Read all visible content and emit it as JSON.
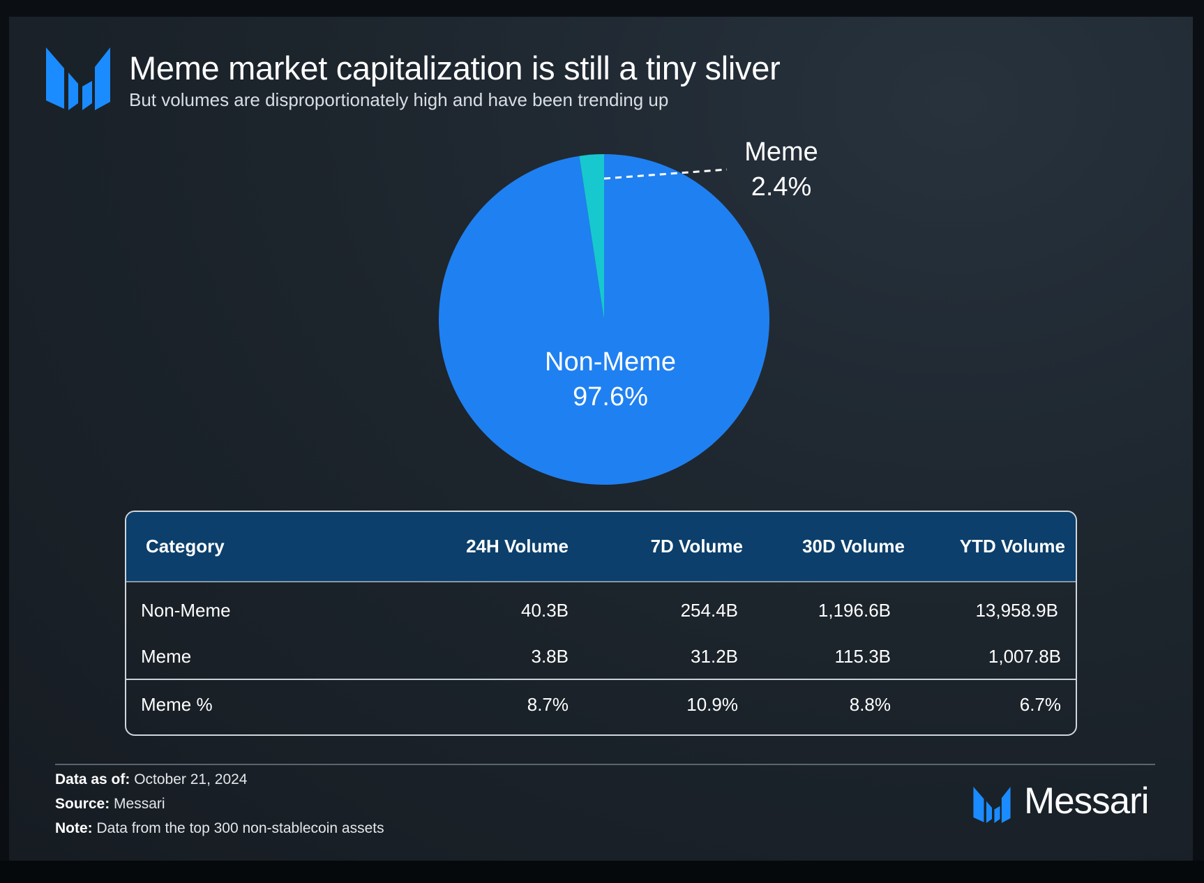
{
  "header": {
    "title": "Meme market capitalization is still a tiny sliver",
    "subtitle": "But volumes are disproportionately high and have been trending up"
  },
  "colors": {
    "non_meme": "#1f80f1",
    "meme": "#17c8cf",
    "table_header": "#0c3f6b",
    "brand": "#1a8cff"
  },
  "chart_data": {
    "type": "pie",
    "title": "Meme market capitalization is still a tiny sliver",
    "slices": [
      {
        "label": "Non-Meme",
        "value": 97.6,
        "display": "97.6%"
      },
      {
        "label": "Meme",
        "value": 2.4,
        "display": "2.4%"
      }
    ]
  },
  "table": {
    "headers": [
      "Category",
      "24H Volume",
      "7D Volume",
      "30D Volume",
      "YTD Volume"
    ],
    "rows": [
      [
        "Non-Meme",
        "40.3B",
        "254.4B",
        "1,196.6B",
        "13,958.9B"
      ],
      [
        "Meme",
        "3.8B",
        "31.2B",
        "115.3B",
        "1,007.8B"
      ]
    ],
    "summary": [
      "Meme %",
      "8.7%",
      "10.9%",
      "8.8%",
      "6.7%"
    ]
  },
  "footer": {
    "data_as_of_label": "Data as of:",
    "data_as_of_value": "October 21, 2024",
    "source_label": "Source:",
    "source_value": "Messari",
    "note_label": "Note:",
    "note_value": "Data from the top 300 non-stablecoin assets",
    "brand_name": "Messari"
  }
}
